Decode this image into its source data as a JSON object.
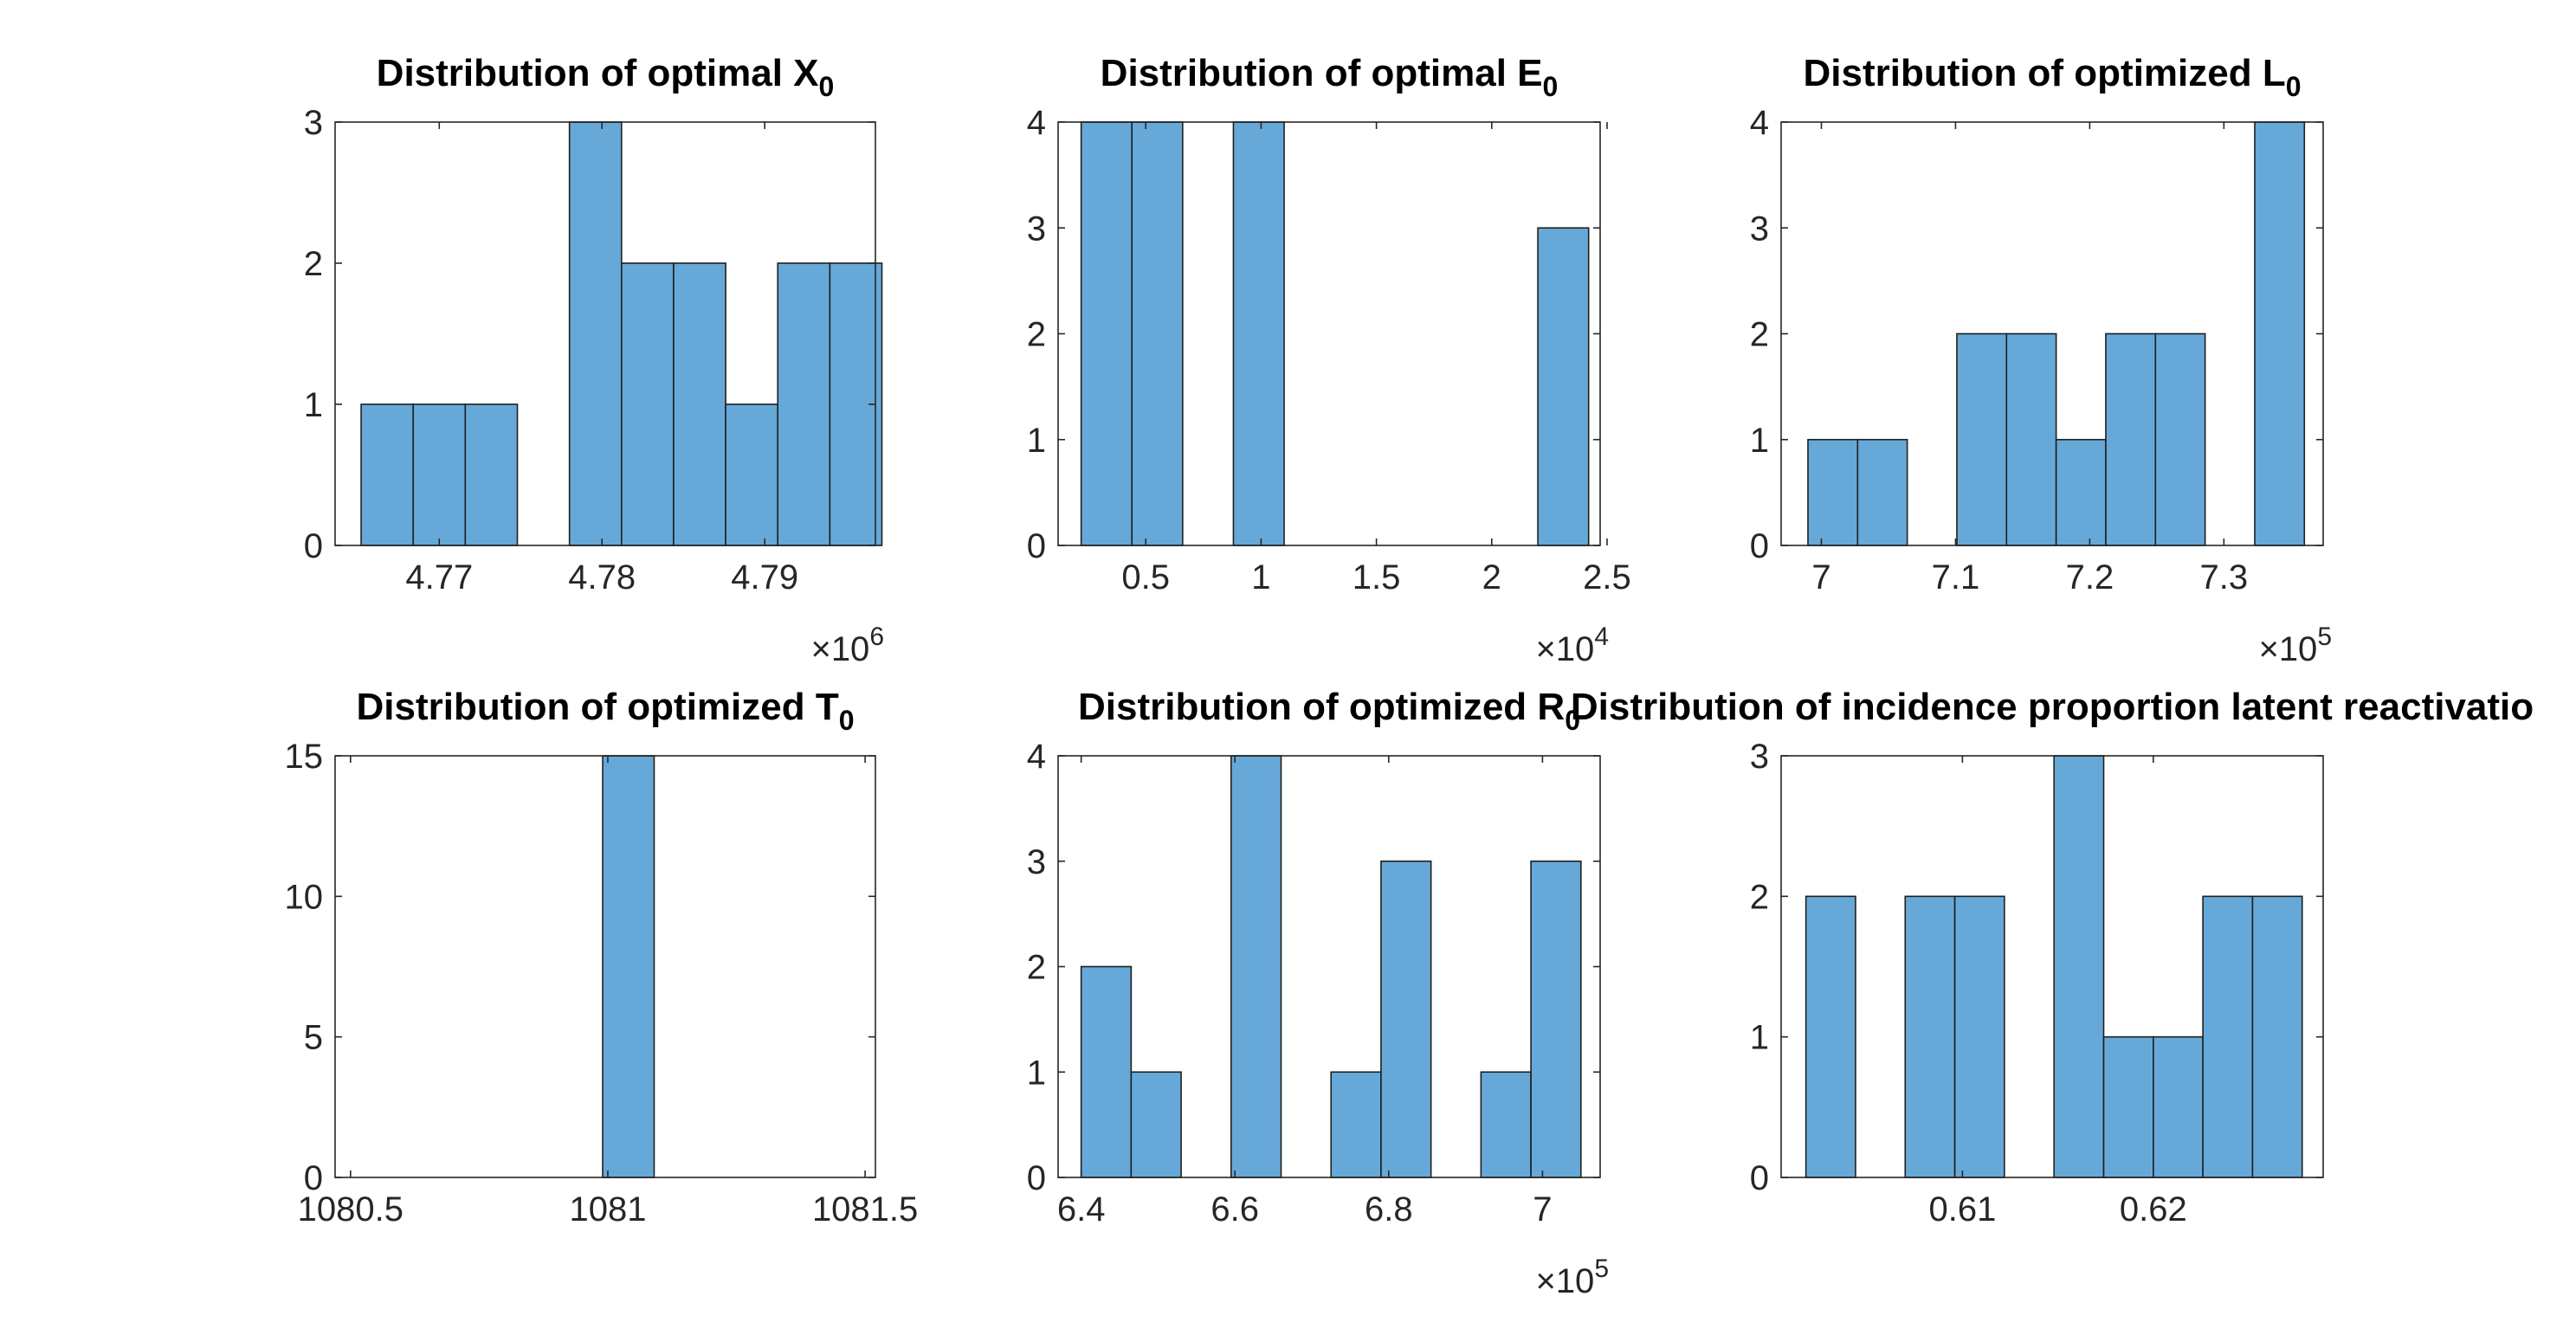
{
  "figure": {
    "background": "#ffffff",
    "bar_color": "#66a9d8",
    "edge_color": "#1f1f1f"
  },
  "chart_data": [
    {
      "type": "bar",
      "title": "Distribution of optimal X",
      "title_subscript": "0",
      "x_exponent": "×10",
      "x_exponent_power": "6",
      "xlim": [
        4.7636,
        4.7968
      ],
      "ylim": [
        0,
        3
      ],
      "xticks": [
        4.77,
        4.78,
        4.79
      ],
      "xtick_labels": [
        "4.77",
        "4.78",
        "4.79"
      ],
      "yticks": [
        0,
        1,
        2,
        3
      ],
      "ytick_labels": [
        "0",
        "1",
        "2",
        "3"
      ],
      "bin_edges": [
        4.7652,
        4.7684,
        4.7716,
        4.7748,
        4.778,
        4.7812,
        4.7844,
        4.7876,
        4.7908,
        4.794,
        4.7972
      ],
      "counts": [
        1,
        1,
        1,
        0,
        3,
        2,
        2,
        1,
        2,
        2
      ]
    },
    {
      "type": "bar",
      "title": "Distribution of optimal E",
      "title_subscript": "0",
      "x_exponent": "×10",
      "x_exponent_power": "4",
      "xlim": [
        0.12,
        2.47
      ],
      "ylim": [
        0,
        4
      ],
      "xticks": [
        0.5,
        1,
        1.5,
        2,
        2.5
      ],
      "xtick_labels": [
        "0.5",
        "1",
        "1.5",
        "2",
        "2.5"
      ],
      "yticks": [
        0,
        1,
        2,
        3,
        4
      ],
      "ytick_labels": [
        "0",
        "1",
        "2",
        "3",
        "4"
      ],
      "bin_edges": [
        0.22,
        0.44,
        0.66,
        0.88,
        1.1,
        1.32,
        1.54,
        1.76,
        1.98,
        2.2,
        2.42
      ],
      "counts": [
        4,
        4,
        0,
        4,
        0,
        0,
        0,
        0,
        0,
        3
      ]
    },
    {
      "type": "bar",
      "title": "Distribution of optimized L",
      "title_subscript": "0",
      "x_exponent": "×10",
      "x_exponent_power": "5",
      "xlim": [
        6.97,
        7.374
      ],
      "ylim": [
        0,
        4
      ],
      "xticks": [
        7,
        7.1,
        7.2,
        7.3
      ],
      "xtick_labels": [
        "7",
        "7.1",
        "7.2",
        "7.3"
      ],
      "yticks": [
        0,
        1,
        2,
        3,
        4
      ],
      "ytick_labels": [
        "0",
        "1",
        "2",
        "3",
        "4"
      ],
      "bin_edges": [
        6.99,
        7.027,
        7.064,
        7.101,
        7.138,
        7.175,
        7.212,
        7.249,
        7.286,
        7.323,
        7.36
      ],
      "counts": [
        1,
        1,
        0,
        2,
        2,
        1,
        2,
        2,
        0,
        4
      ]
    },
    {
      "type": "bar",
      "title": "Distribution of optimized T",
      "title_subscript": "0",
      "x_exponent": "",
      "x_exponent_power": "",
      "xlim": [
        1080.47,
        1081.52
      ],
      "ylim": [
        0,
        15
      ],
      "xticks": [
        1080.5,
        1081,
        1081.5
      ],
      "xtick_labels": [
        "1080.5",
        "1081",
        "1081.5"
      ],
      "yticks": [
        0,
        5,
        10,
        15
      ],
      "ytick_labels": [
        "0",
        "5",
        "10",
        "15"
      ],
      "bin_edges": [
        1080.99,
        1081.09
      ],
      "counts": [
        15
      ]
    },
    {
      "type": "bar",
      "title": "Distribution of optimized R",
      "title_subscript": "0",
      "x_exponent": "×10",
      "x_exponent_power": "5",
      "xlim": [
        6.37,
        7.075
      ],
      "ylim": [
        0,
        4
      ],
      "xticks": [
        6.4,
        6.6,
        6.8,
        7
      ],
      "xtick_labels": [
        "6.4",
        "6.6",
        "6.8",
        "7"
      ],
      "yticks": [
        0,
        1,
        2,
        3,
        4
      ],
      "ytick_labels": [
        "0",
        "1",
        "2",
        "3",
        "4"
      ],
      "bin_edges": [
        6.4,
        6.465,
        6.53,
        6.595,
        6.66,
        6.725,
        6.79,
        6.855,
        6.92,
        6.985,
        7.05
      ],
      "counts": [
        2,
        1,
        0,
        4,
        0,
        1,
        3,
        0,
        1,
        3
      ]
    },
    {
      "type": "bar",
      "title": "Distribution of incidence proportion latent reactivatio",
      "title_subscript": "",
      "x_exponent": "",
      "x_exponent_power": "",
      "xlim": [
        0.6005,
        0.6289
      ],
      "ylim": [
        0,
        3
      ],
      "xticks": [
        0.61,
        0.62
      ],
      "xtick_labels": [
        "0.61",
        "0.62"
      ],
      "yticks": [
        0,
        1,
        2,
        3
      ],
      "ytick_labels": [
        "0",
        "1",
        "2",
        "3"
      ],
      "bin_edges": [
        0.6018,
        0.6044,
        0.607,
        0.6096,
        0.6122,
        0.6148,
        0.6174,
        0.62,
        0.6226,
        0.6252,
        0.6278
      ],
      "counts": [
        2,
        0,
        2,
        2,
        0,
        3,
        1,
        1,
        2,
        2
      ]
    }
  ]
}
